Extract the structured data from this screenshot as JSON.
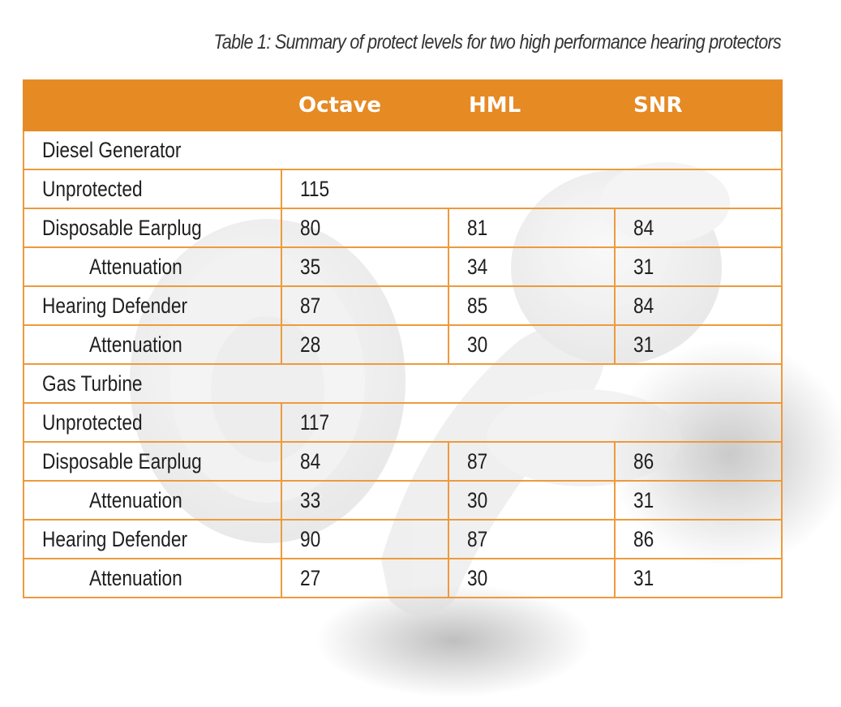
{
  "caption": "Table 1: Summary of protect levels for two high performance hearing protectors",
  "header": {
    "col0": "",
    "col1": "Octave",
    "col2": "HML",
    "col3": "SNR"
  },
  "sections": [
    {
      "title": "Diesel Generator",
      "unprotected": {
        "label": "Unprotected",
        "value": "115"
      },
      "rows": [
        {
          "label": "Disposable Earplug",
          "octave": "80",
          "hml": "81",
          "snr": "84",
          "indent": false
        },
        {
          "label": "Attenuation",
          "octave": "35",
          "hml": "34",
          "snr": "31",
          "indent": true
        },
        {
          "label": "Hearing Defender",
          "octave": "87",
          "hml": "85",
          "snr": "84",
          "indent": false
        },
        {
          "label": "Attenuation",
          "octave": "28",
          "hml": "30",
          "snr": "31",
          "indent": true
        }
      ]
    },
    {
      "title": "Gas Turbine",
      "unprotected": {
        "label": "Unprotected",
        "value": "117"
      },
      "rows": [
        {
          "label": "Disposable Earplug",
          "octave": "84",
          "hml": "87",
          "snr": "86",
          "indent": false
        },
        {
          "label": "Attenuation",
          "octave": "33",
          "hml": "30",
          "snr": "31",
          "indent": true
        },
        {
          "label": "Hearing Defender",
          "octave": "90",
          "hml": "87",
          "snr": "86",
          "indent": false
        },
        {
          "label": "Attenuation",
          "octave": "27",
          "hml": "30",
          "snr": "31",
          "indent": true
        }
      ]
    }
  ],
  "colors": {
    "header_bg": "#e68a24",
    "grid": "#ee9a3c",
    "header_text": "#ffffff"
  }
}
